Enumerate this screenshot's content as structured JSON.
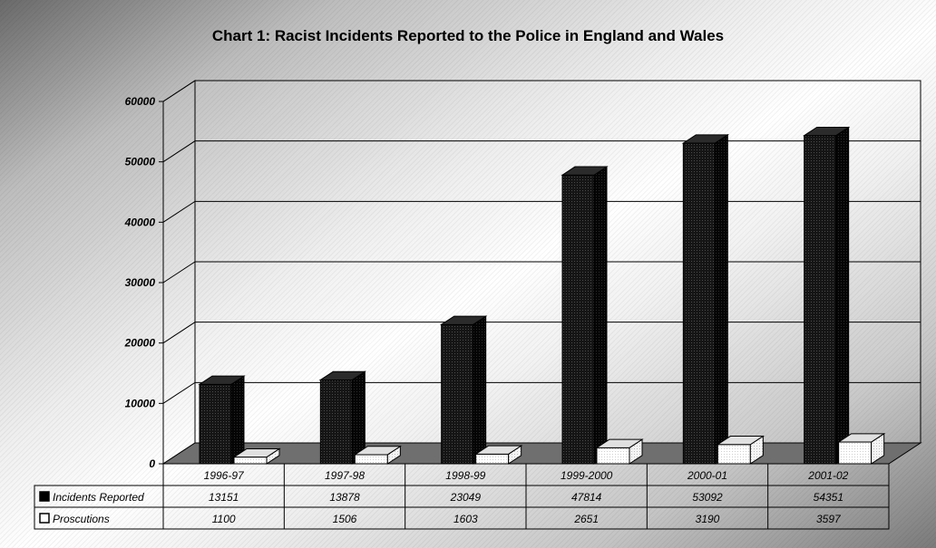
{
  "chart_data": {
    "type": "bar",
    "title": "Chart 1: Racist Incidents Reported to the Police in England and Wales",
    "categories": [
      "1996-97",
      "1997-98",
      "1998-99",
      "1999-2000",
      "2000-01",
      "2001-02"
    ],
    "series": [
      {
        "name": "Incidents Reported",
        "values": [
          13151,
          13878,
          23049,
          47814,
          53092,
          54351
        ],
        "color": "#111111"
      },
      {
        "name": "Proscutions",
        "values": [
          1100,
          1506,
          1603,
          2651,
          3190,
          3597
        ],
        "color": "#ffffff"
      }
    ],
    "yticks": [
      "0",
      "10000",
      "20000",
      "30000",
      "40000",
      "50000",
      "60000"
    ],
    "ylim": [
      0,
      60000
    ],
    "grid": true,
    "legend": "data-table",
    "three_d": true
  }
}
